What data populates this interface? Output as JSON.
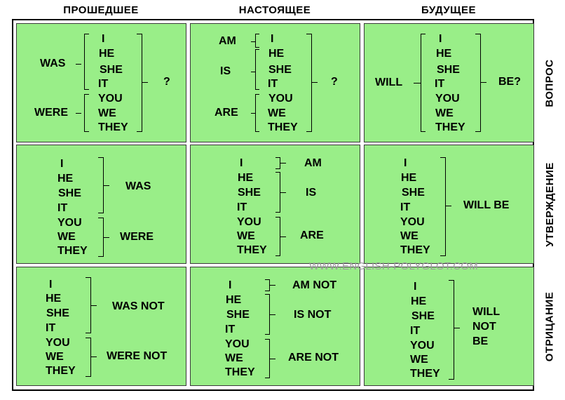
{
  "columns": {
    "past": "ПРОШЕДШЕЕ",
    "present": "НАСТОЯЩЕЕ",
    "future": "БУДУЩЕЕ"
  },
  "rows": {
    "question": "ВОПРОС",
    "affirmative": "УТВЕРЖДЕНИЕ",
    "negative": "ОТРИЦАНИЕ"
  },
  "pronouns": {
    "i": "I",
    "he": "HE",
    "she": "SHE",
    "it": "IT",
    "you": "YOU",
    "we": "WE",
    "they": "THEY"
  },
  "verbs": {
    "was": "WAS",
    "were": "WERE",
    "am": "AM",
    "is": "IS",
    "are": "ARE",
    "will": "WILL",
    "will_be": "WILL BE",
    "be_q": "BE?",
    "question_mark": "?",
    "was_not": "WAS NOT",
    "were_not": "WERE NOT",
    "am_not": "AM NOT",
    "is_not": "IS NOT",
    "are_not": "ARE NOT",
    "will_word": "WILL",
    "not_word": "NOT",
    "be_word": "BE"
  },
  "watermark": "WWW.ENGLISH-POLYGLOT.COM"
}
